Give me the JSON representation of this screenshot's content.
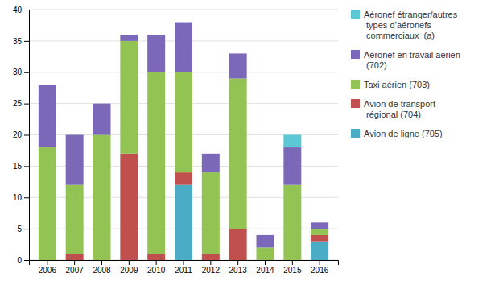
{
  "chart_data": {
    "type": "bar",
    "stacked": true,
    "grid": true,
    "legend": "right",
    "categories": [
      "2006",
      "2007",
      "2008",
      "2009",
      "2010",
      "2011",
      "2012",
      "2013",
      "2014",
      "2015",
      "2016"
    ],
    "series": [
      {
        "name": "Avion de ligne (705)",
        "color": "#4bacc6",
        "values": [
          0,
          0,
          0,
          0,
          0,
          12,
          0,
          0,
          0,
          0,
          3
        ]
      },
      {
        "name": "Avion de transport\n régional (704)",
        "color": "#c0504d",
        "values": [
          0,
          1,
          0,
          17,
          1,
          2,
          1,
          5,
          0,
          0,
          1
        ]
      },
      {
        "name": "Taxi aérien (703)",
        "color": "#92c353",
        "values": [
          18,
          11,
          20,
          18,
          29,
          16,
          13,
          24,
          2,
          12,
          1
        ]
      },
      {
        "name": "Aéronef en travail aérien\n (702)",
        "color": "#7b68b8",
        "values": [
          10,
          8,
          5,
          1,
          6,
          8,
          3,
          4,
          2,
          6,
          1
        ]
      },
      {
        "name": "Aéronef étranger/autres\n types d’aéronefs\n commerciaux  (a)",
        "color": "#5bc8d5",
        "values": [
          0,
          0,
          0,
          0,
          0,
          0,
          0,
          0,
          0,
          2,
          0
        ]
      }
    ],
    "ylim": [
      0,
      40
    ],
    "yticks": [
      0,
      5,
      10,
      15,
      20,
      25,
      30,
      35,
      40
    ]
  }
}
